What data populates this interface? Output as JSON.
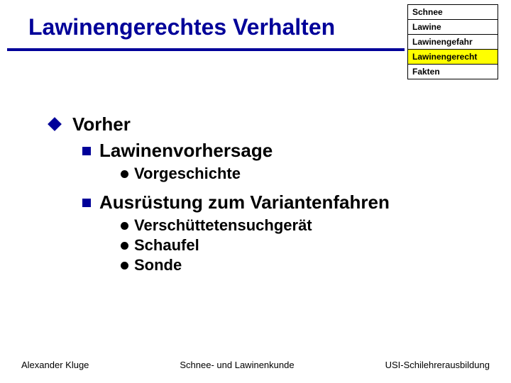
{
  "title": "Lawinengerechtes Verhalten",
  "nav": {
    "items": [
      {
        "label": "Schnee",
        "active": false
      },
      {
        "label": "Lawine",
        "active": false
      },
      {
        "label": "Lawinengefahr",
        "active": false
      },
      {
        "label": "Lawinengerecht",
        "active": true
      },
      {
        "label": "Fakten",
        "active": false
      }
    ]
  },
  "colors": {
    "accent": "#000099",
    "highlight": "#ffff00",
    "text": "#000000",
    "background": "#ffffff"
  },
  "outline": {
    "l1": "Vorher",
    "l2a": "Lawinenvorhersage",
    "l3a": "Vorgeschichte",
    "l2b": "Ausrüstung zum Variantenfahren",
    "l3b": "Verschüttetensuchgerät",
    "l3c": "Schaufel",
    "l3d": "Sonde"
  },
  "footer": {
    "left": "Alexander Kluge",
    "center": "Schnee- und Lawinenkunde",
    "right": "USI-Schilehrerausbildung"
  }
}
